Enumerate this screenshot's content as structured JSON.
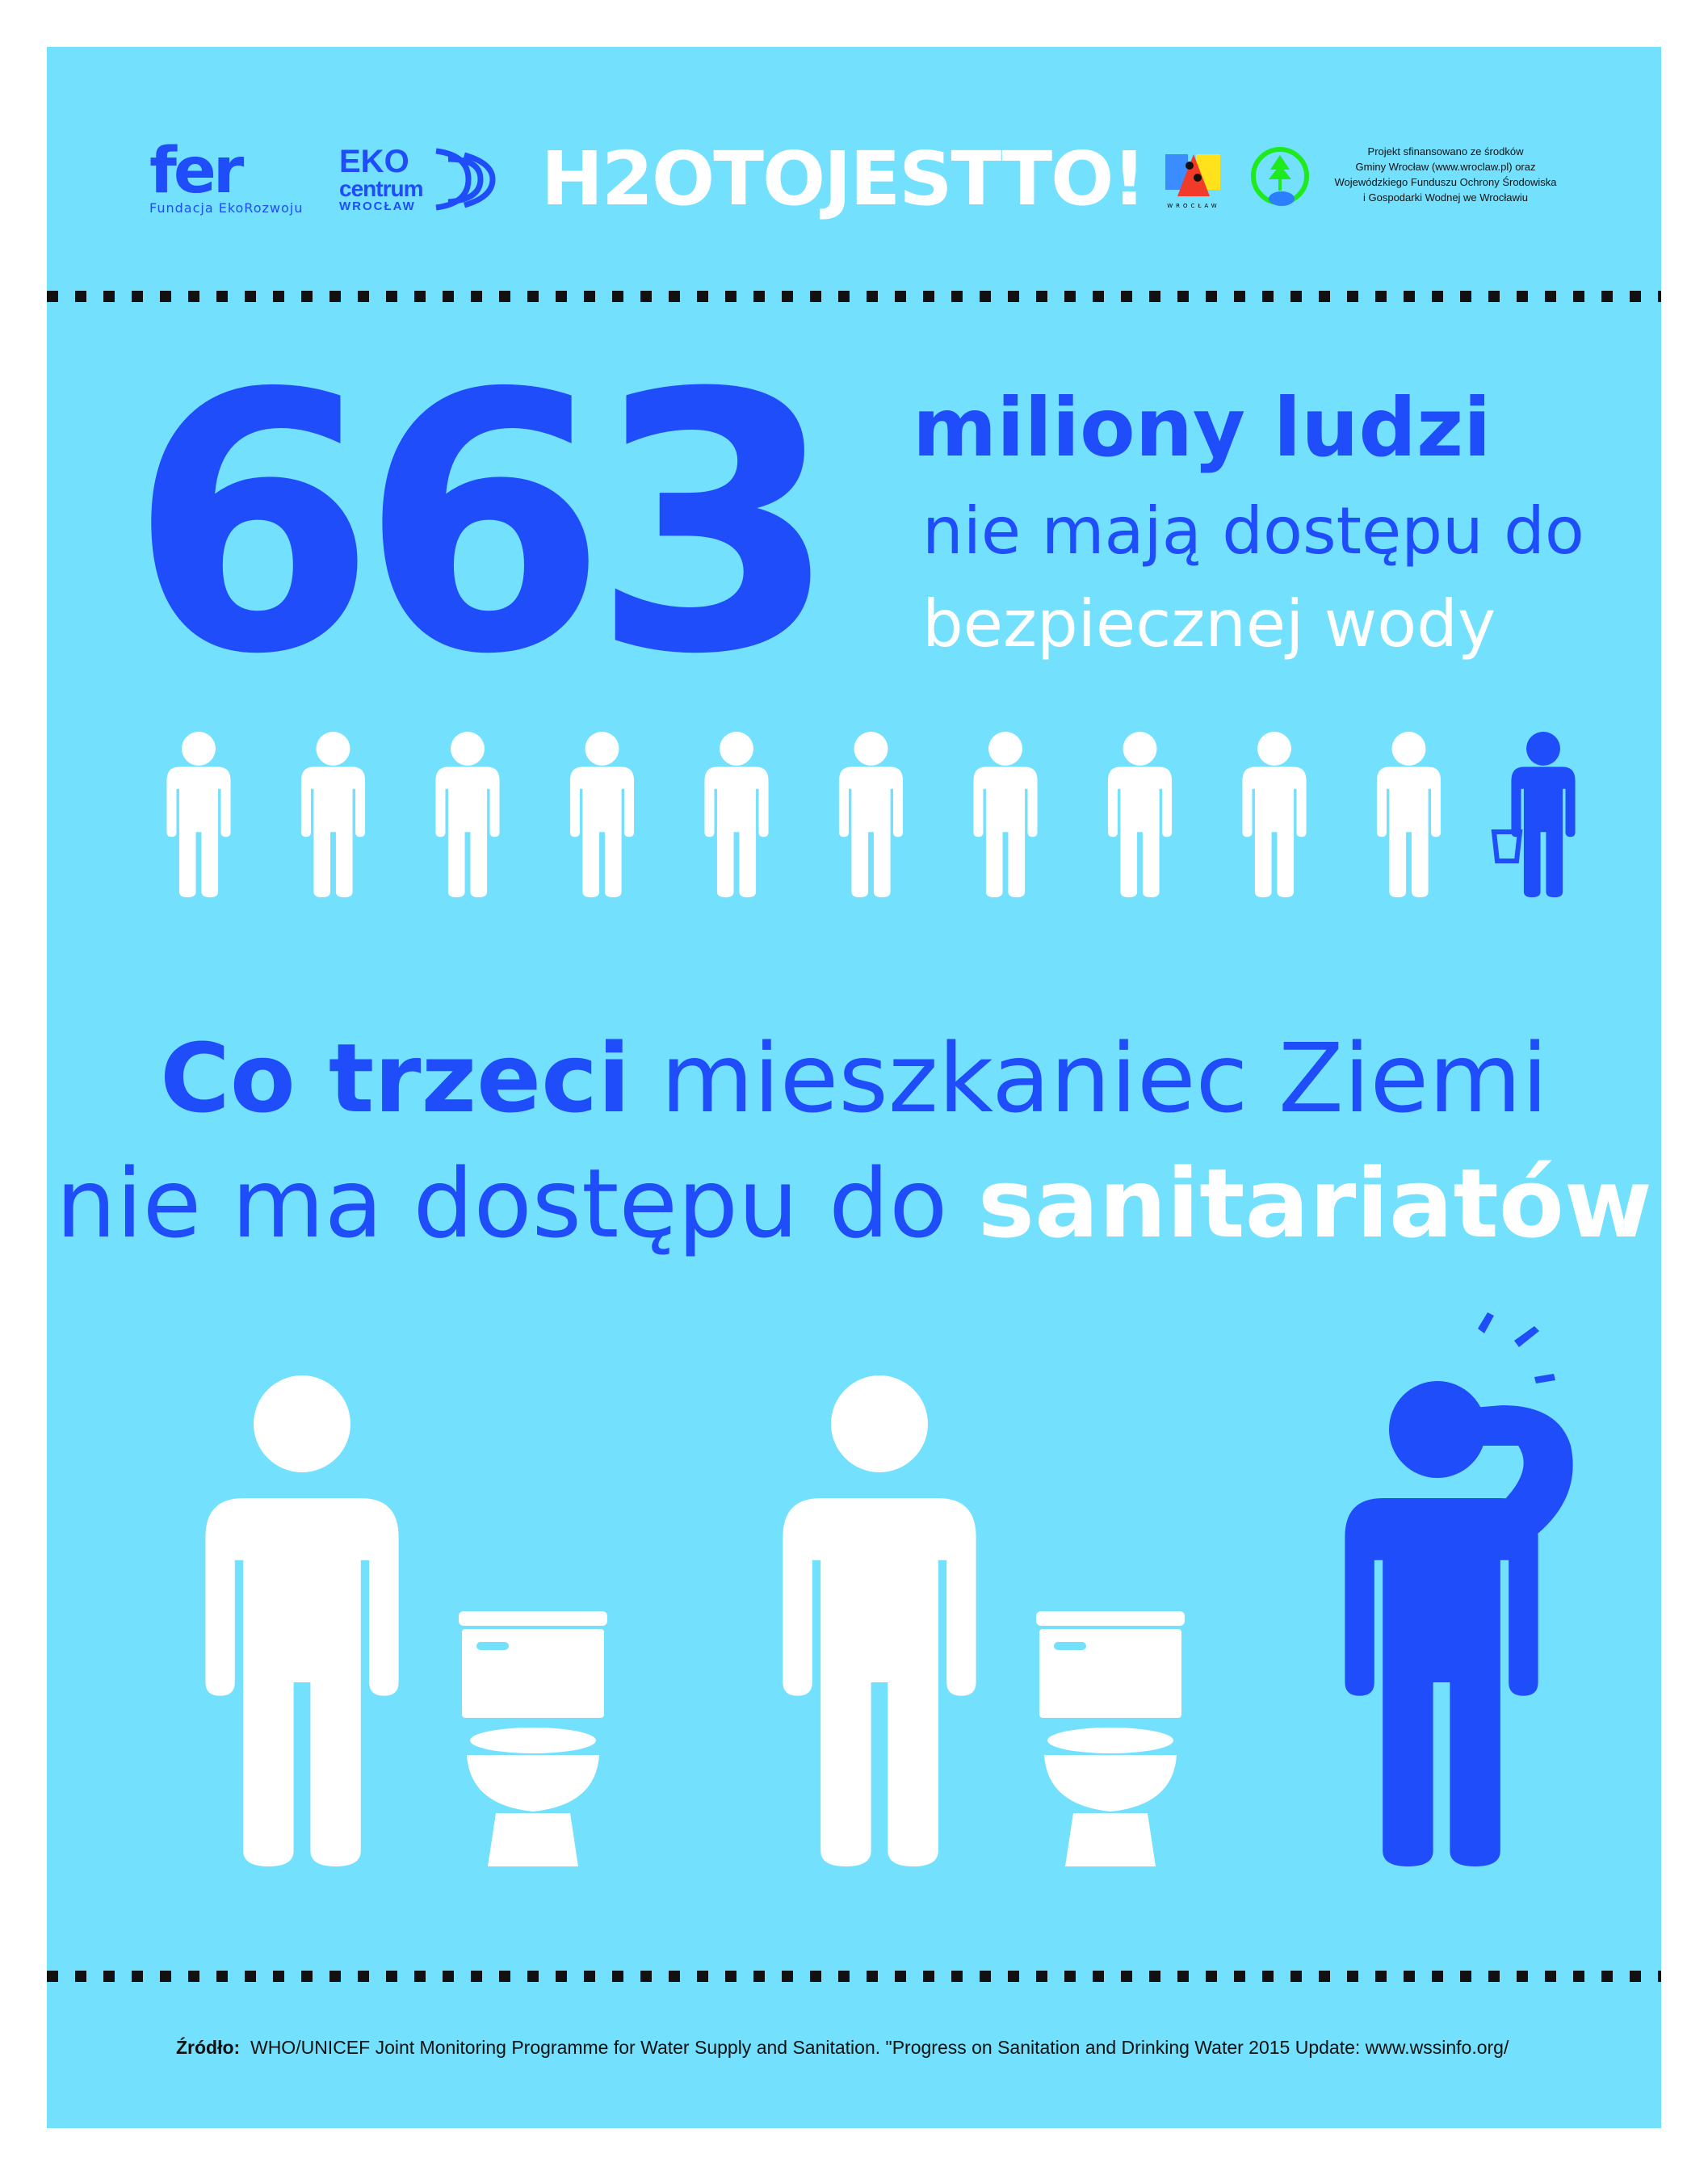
{
  "header": {
    "logo_fer": {
      "mark": "fer",
      "subtitle": "Fundacja EkoRozwoju"
    },
    "logo_ekocentrum": {
      "line1": "EKO",
      "line2": "centrum",
      "line3": "WROCŁAW"
    },
    "campaign_title": "H2OTOJESTTO!",
    "logo_wroclaw": {
      "caption": "WROCŁAW"
    },
    "logo_wfos": {},
    "sponsor_note": [
      "Projekt sfinansowano ze środków",
      "Gminy Wrocław (www.wroclaw.pl) oraz",
      "Wojewódzkiego Funduszu Ochrony Środowiska",
      "i Gospodarki Wodnej we Wrocławiu"
    ]
  },
  "stat_water": {
    "number": "663",
    "unit": "miliony ludzi",
    "line2": "nie mają dostępu do",
    "line3": "bezpiecznej wody",
    "figures_total": 11,
    "figures_highlighted": 1
  },
  "stat_sanitation": {
    "part1_bold": "Co trzeci",
    "part1_rest": " mieszkaniec Ziemi",
    "part2": "nie ma dostępu do ",
    "part2_bold": "sanitariatów"
  },
  "footer": {
    "source_label": "Źródło:",
    "source_text": "WHO/UNICEF Joint Monitoring Programme for Water Supply and Sanitation. \"Progress on Sanitation and Drinking Water 2015 Update: www.wssinfo.org/"
  },
  "colors": {
    "background": "#73e0fd",
    "accent": "#1f4dfa",
    "text_light": "#ffffff"
  }
}
